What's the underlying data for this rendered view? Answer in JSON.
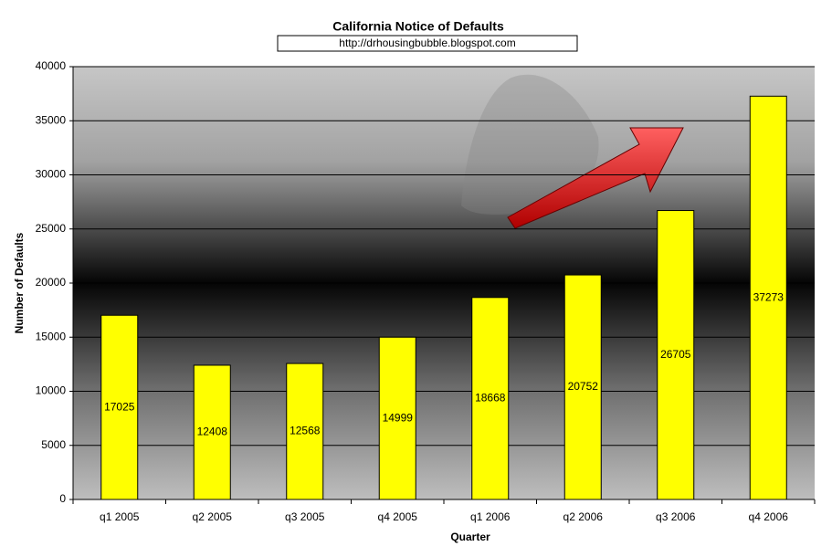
{
  "chart_data": {
    "type": "bar",
    "title": "California Notice of Defaults",
    "subtitle": "http://drhousingbubble.blogspot.com",
    "x_label": "Quarter",
    "y_label": "Number of Defaults",
    "categories": [
      "q1 2005",
      "q2 2005",
      "q3 2005",
      "q4 2005",
      "q1 2006",
      "q2 2006",
      "q3 2006",
      "q4 2006"
    ],
    "values": [
      17025,
      12408,
      12568,
      14999,
      18668,
      20752,
      26705,
      37273
    ],
    "color": "#ffff00",
    "ylim": [
      0,
      40000
    ],
    "yticks": [
      0,
      5000,
      10000,
      15000,
      20000,
      25000,
      30000,
      35000,
      40000
    ],
    "grid": true
  }
}
